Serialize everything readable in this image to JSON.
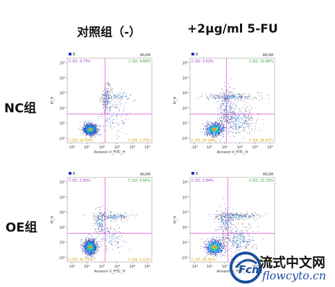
{
  "columns": [
    "对照组（-）",
    "+2μg/ml 5-FU"
  ],
  "rows": [
    "NC组",
    "OE组"
  ],
  "watermark": {
    "cn": "流式中文网",
    "en": "flowcyto.cn"
  },
  "colors": {
    "quadrant_line": "#d02ad0",
    "q1": "#9b30c8",
    "q2": "#2e9e2e",
    "q3": "#d8a000",
    "q4": "#d8a000",
    "legend": "#1a2fc8"
  },
  "chart_data": [
    {
      "type": "scatter",
      "id": "nc-control",
      "title": "",
      "xlabel": "Annexin V_FITC_H",
      "ylabel": "PI_H",
      "x_ticks": [
        "-10¹",
        "10¹",
        "10²",
        "10³",
        "10⁴",
        "10⁵"
      ],
      "y_ticks": [
        "-10¹",
        "10¹",
        "10²",
        "10³",
        "10⁴",
        "10⁵"
      ],
      "corner": "WLSM",
      "legend": "B",
      "quadrants": {
        "q1": "C-Q1: 0.73%",
        "q2": "C-Q2: 4.68%",
        "q3": "C-Q3: 92.83%",
        "q4": "C-Q4: 1.75%"
      },
      "gate": {
        "x": 2.2,
        "y": 1.6
      },
      "populations": [
        {
          "cx": 1.2,
          "cy": 0.6,
          "sx": 0.22,
          "sy": 0.18,
          "weight": 0.75,
          "core": true
        },
        {
          "cx": 2.3,
          "cy": 2.7,
          "sx": 0.18,
          "sy": 0.45,
          "weight": 0.12
        },
        {
          "cx": 3.1,
          "cy": 2.8,
          "sx": 0.45,
          "sy": 0.15,
          "weight": 0.05
        },
        {
          "cx": 2.7,
          "cy": 1.4,
          "sx": 0.55,
          "sy": 0.55,
          "weight": 0.08
        }
      ]
    },
    {
      "type": "scatter",
      "id": "nc-5fu",
      "title": "",
      "xlabel": "Annexin V_FITC_H",
      "ylabel": "PI_H",
      "x_ticks": [
        "-10¹",
        "10¹",
        "10²",
        "10³",
        "10⁴",
        "10⁵"
      ],
      "y_ticks": [
        "-10¹",
        "10¹",
        "10²",
        "10³",
        "10⁴",
        "10⁵"
      ],
      "corner": "WLSM",
      "legend": "B",
      "quadrants": {
        "q1": "C-Q1: 3.52%",
        "q2": "C-Q2: 15.66%",
        "q3": "C-Q3: 54.19%",
        "q4": "C-Q4: 26.63%"
      },
      "gate": {
        "x": 2.1,
        "y": 1.6
      },
      "populations": [
        {
          "cx": 1.3,
          "cy": 0.6,
          "sx": 0.3,
          "sy": 0.22,
          "weight": 0.5,
          "core": true
        },
        {
          "cx": 2.1,
          "cy": 2.1,
          "sx": 0.25,
          "sy": 0.7,
          "weight": 0.15
        },
        {
          "cx": 2.4,
          "cy": 2.75,
          "sx": 0.9,
          "sy": 0.12,
          "weight": 0.15
        },
        {
          "cx": 2.9,
          "cy": 1.2,
          "sx": 0.6,
          "sy": 0.5,
          "weight": 0.2
        }
      ]
    },
    {
      "type": "scatter",
      "id": "oe-control",
      "title": "",
      "xlabel": "Annexin V_FITC_H",
      "ylabel": "PI_H",
      "x_ticks": [
        "-10¹",
        "10¹",
        "10²",
        "10³",
        "10⁴",
        "10⁵"
      ],
      "y_ticks": [
        "-10¹",
        "10¹",
        "10²",
        "10³",
        "10⁴",
        "10⁵"
      ],
      "corner": "WLSM",
      "legend": "B",
      "quadrants": {
        "q1": "C-Q1: 2.60%",
        "q2": "C-Q2: 4.56%",
        "q3": "C-Q3: 91.72%",
        "q4": "C-Q4: 1.11%"
      },
      "gate": {
        "x": 2.2,
        "y": 1.6
      },
      "populations": [
        {
          "cx": 1.2,
          "cy": 0.7,
          "sx": 0.22,
          "sy": 0.25,
          "weight": 0.72,
          "core": true
        },
        {
          "cx": 1.9,
          "cy": 2.4,
          "sx": 0.2,
          "sy": 0.45,
          "weight": 0.1
        },
        {
          "cx": 2.7,
          "cy": 2.75,
          "sx": 0.6,
          "sy": 0.12,
          "weight": 0.1
        },
        {
          "cx": 2.6,
          "cy": 1.3,
          "sx": 0.5,
          "sy": 0.5,
          "weight": 0.08
        }
      ]
    },
    {
      "type": "scatter",
      "id": "oe-5fu",
      "title": "",
      "xlabel": "Annexin V_FITC_H",
      "ylabel": "PI_H",
      "x_ticks": [
        "-10¹",
        "10¹",
        "10²",
        "10³",
        "10⁴",
        "10⁵"
      ],
      "y_ticks": [
        "-10¹",
        "10¹",
        "10²",
        "10³",
        "10⁴",
        "10⁵"
      ],
      "corner": "WLSM",
      "legend": "B",
      "quadrants": {
        "q1": "C-Q1: 2.94%",
        "q2": "C-Q2: 11.33%",
        "q3": "C-Q3: 61.55%",
        "q4": "C-Q4: 24.18%"
      },
      "gate": {
        "x": 2.2,
        "y": 1.6
      },
      "populations": [
        {
          "cx": 1.3,
          "cy": 0.7,
          "sx": 0.3,
          "sy": 0.25,
          "weight": 0.55,
          "core": true
        },
        {
          "cx": 2.0,
          "cy": 2.3,
          "sx": 0.25,
          "sy": 0.6,
          "weight": 0.12
        },
        {
          "cx": 2.7,
          "cy": 2.75,
          "sx": 0.8,
          "sy": 0.12,
          "weight": 0.15
        },
        {
          "cx": 2.9,
          "cy": 1.2,
          "sx": 0.55,
          "sy": 0.5,
          "weight": 0.18
        }
      ]
    }
  ]
}
